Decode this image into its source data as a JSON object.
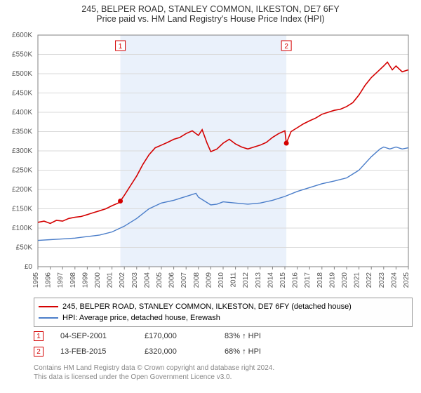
{
  "title_line1": "245, BELPER ROAD, STANLEY COMMON, ILKESTON, DE7 6FY",
  "title_line2": "Price paid vs. HM Land Registry's House Price Index (HPI)",
  "chart": {
    "type": "line",
    "background_color": "#ffffff",
    "shaded_band_color": "#eaf1fb",
    "shaded_band_xstart": 2001.68,
    "shaded_band_xend": 2015.12,
    "grid_color": "#d9d9d9",
    "axis_color": "#808080",
    "tick_font_size": 10,
    "xlim": [
      1995,
      2025
    ],
    "ylim": [
      0,
      600000
    ],
    "ytick_step": 50000,
    "yticks": [
      0,
      50000,
      100000,
      150000,
      200000,
      250000,
      300000,
      350000,
      400000,
      450000,
      500000,
      550000,
      600000
    ],
    "ytick_labels": [
      "£0",
      "£50K",
      "£100K",
      "£150K",
      "£200K",
      "£250K",
      "£300K",
      "£350K",
      "£400K",
      "£450K",
      "£500K",
      "£550K",
      "£600K"
    ],
    "xticks": [
      1995,
      1996,
      1997,
      1998,
      1999,
      2000,
      2001,
      2002,
      2003,
      2004,
      2005,
      2006,
      2007,
      2008,
      2009,
      2010,
      2011,
      2012,
      2013,
      2014,
      2015,
      2016,
      2017,
      2018,
      2019,
      2020,
      2021,
      2022,
      2023,
      2024,
      2025
    ],
    "series": [
      {
        "name": "price_paid",
        "label": "245, BELPER ROAD, STANLEY COMMON, ILKESTON, DE7 6FY (detached house)",
        "color": "#d40000",
        "line_width": 1.6,
        "points": [
          [
            1995,
            115000
          ],
          [
            1995.5,
            118000
          ],
          [
            1996,
            112000
          ],
          [
            1996.5,
            120000
          ],
          [
            1997,
            118000
          ],
          [
            1997.5,
            125000
          ],
          [
            1998,
            128000
          ],
          [
            1998.5,
            130000
          ],
          [
            1999,
            135000
          ],
          [
            1999.5,
            140000
          ],
          [
            2000,
            145000
          ],
          [
            2000.5,
            150000
          ],
          [
            2001,
            158000
          ],
          [
            2001.5,
            165000
          ],
          [
            2001.68,
            170000
          ],
          [
            2002,
            185000
          ],
          [
            2002.5,
            210000
          ],
          [
            2003,
            235000
          ],
          [
            2003.5,
            265000
          ],
          [
            2004,
            290000
          ],
          [
            2004.5,
            308000
          ],
          [
            2005,
            315000
          ],
          [
            2005.5,
            322000
          ],
          [
            2006,
            330000
          ],
          [
            2006.5,
            335000
          ],
          [
            2007,
            345000
          ],
          [
            2007.5,
            352000
          ],
          [
            2008,
            340000
          ],
          [
            2008.3,
            355000
          ],
          [
            2008.7,
            320000
          ],
          [
            2009,
            298000
          ],
          [
            2009.5,
            305000
          ],
          [
            2010,
            320000
          ],
          [
            2010.5,
            330000
          ],
          [
            2011,
            318000
          ],
          [
            2011.5,
            310000
          ],
          [
            2012,
            305000
          ],
          [
            2012.5,
            310000
          ],
          [
            2013,
            315000
          ],
          [
            2013.5,
            322000
          ],
          [
            2014,
            335000
          ],
          [
            2014.5,
            345000
          ],
          [
            2015,
            352000
          ],
          [
            2015.12,
            320000
          ],
          [
            2015.5,
            350000
          ],
          [
            2016,
            360000
          ],
          [
            2016.5,
            370000
          ],
          [
            2017,
            378000
          ],
          [
            2017.5,
            385000
          ],
          [
            2018,
            395000
          ],
          [
            2018.5,
            400000
          ],
          [
            2019,
            405000
          ],
          [
            2019.5,
            408000
          ],
          [
            2020,
            415000
          ],
          [
            2020.5,
            425000
          ],
          [
            2021,
            445000
          ],
          [
            2021.5,
            470000
          ],
          [
            2022,
            490000
          ],
          [
            2022.5,
            505000
          ],
          [
            2023,
            520000
          ],
          [
            2023.3,
            530000
          ],
          [
            2023.7,
            510000
          ],
          [
            2024,
            520000
          ],
          [
            2024.5,
            505000
          ],
          [
            2025,
            510000
          ]
        ]
      },
      {
        "name": "hpi",
        "label": "HPI: Average price, detached house, Erewash",
        "color": "#4a7dc9",
        "line_width": 1.4,
        "points": [
          [
            1995,
            68000
          ],
          [
            1996,
            70000
          ],
          [
            1997,
            72000
          ],
          [
            1998,
            74000
          ],
          [
            1999,
            78000
          ],
          [
            2000,
            82000
          ],
          [
            2001,
            90000
          ],
          [
            2002,
            105000
          ],
          [
            2003,
            125000
          ],
          [
            2004,
            150000
          ],
          [
            2005,
            165000
          ],
          [
            2006,
            172000
          ],
          [
            2007,
            182000
          ],
          [
            2007.8,
            190000
          ],
          [
            2008,
            180000
          ],
          [
            2008.5,
            170000
          ],
          [
            2009,
            160000
          ],
          [
            2009.5,
            162000
          ],
          [
            2010,
            168000
          ],
          [
            2011,
            165000
          ],
          [
            2012,
            162000
          ],
          [
            2013,
            165000
          ],
          [
            2014,
            172000
          ],
          [
            2015,
            182000
          ],
          [
            2016,
            195000
          ],
          [
            2017,
            205000
          ],
          [
            2018,
            215000
          ],
          [
            2019,
            222000
          ],
          [
            2020,
            230000
          ],
          [
            2021,
            250000
          ],
          [
            2022,
            285000
          ],
          [
            2022.7,
            305000
          ],
          [
            2023,
            310000
          ],
          [
            2023.5,
            305000
          ],
          [
            2024,
            310000
          ],
          [
            2024.5,
            305000
          ],
          [
            2025,
            308000
          ]
        ]
      }
    ],
    "sale_markers": [
      {
        "n": "1",
        "x": 2001.68,
        "y": 170000,
        "box_color": "#d40000"
      },
      {
        "n": "2",
        "x": 2015.12,
        "y": 320000,
        "box_color": "#d40000"
      }
    ]
  },
  "legend": {
    "items": [
      {
        "color": "#d40000",
        "text": "245, BELPER ROAD, STANLEY COMMON, ILKESTON, DE7 6FY (detached house)"
      },
      {
        "color": "#4a7dc9",
        "text": "HPI: Average price, detached house, Erewash"
      }
    ]
  },
  "marker_rows": [
    {
      "n": "1",
      "color": "#d40000",
      "date": "04-SEP-2001",
      "price": "£170,000",
      "delta": "83% ↑ HPI"
    },
    {
      "n": "2",
      "color": "#d40000",
      "date": "13-FEB-2015",
      "price": "£320,000",
      "delta": "68% ↑ HPI"
    }
  ],
  "footnote_line1": "Contains HM Land Registry data © Crown copyright and database right 2024.",
  "footnote_line2": "This data is licensed under the Open Government Licence v3.0."
}
